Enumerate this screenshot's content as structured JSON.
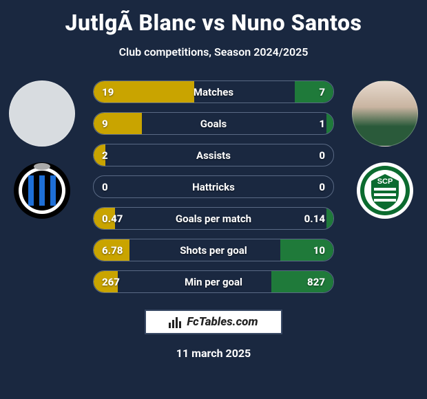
{
  "title": "JutlgÃ  Blanc vs Nuno Santos",
  "subtitle": "Club competitions, Season 2024/2025",
  "date": "11 march 2025",
  "footer": {
    "brand": "FcTables.com"
  },
  "colors": {
    "left_fill": "#c9a400",
    "right_fill": "#1f7a3a",
    "row_border": "#5a6a85",
    "background": "#1a2840"
  },
  "left_club": {
    "name": "Club Brugge",
    "bg": "#000000",
    "stripe": "#1e6fd6"
  },
  "right_club": {
    "name": "Sporting CP",
    "bg": "#0b6b2f",
    "ring": "#ffffff"
  },
  "rows": [
    {
      "label": "Matches",
      "left": "19",
      "right": "7",
      "left_pct": 42,
      "right_pct": 16
    },
    {
      "label": "Goals",
      "left": "9",
      "right": "1",
      "left_pct": 20,
      "right_pct": 3
    },
    {
      "label": "Assists",
      "left": "2",
      "right": "0",
      "left_pct": 5,
      "right_pct": 0
    },
    {
      "label": "Hattricks",
      "left": "0",
      "right": "0",
      "left_pct": 0,
      "right_pct": 0
    },
    {
      "label": "Goals per match",
      "left": "0.47",
      "right": "0.14",
      "left_pct": 9,
      "right_pct": 3
    },
    {
      "label": "Shots per goal",
      "left": "6.78",
      "right": "10",
      "left_pct": 15,
      "right_pct": 22
    },
    {
      "label": "Min per goal",
      "left": "267",
      "right": "827",
      "left_pct": 10,
      "right_pct": 26
    }
  ]
}
